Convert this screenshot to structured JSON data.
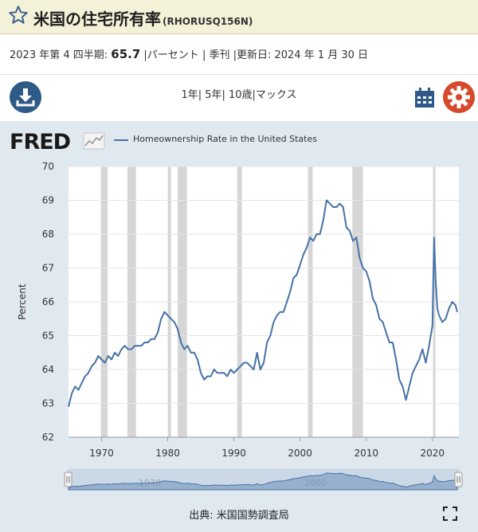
{
  "header": {
    "title": "米国の住宅所有率",
    "series_id": "(RHORUSQ156N)"
  },
  "meta": {
    "period": "2023 年第 4 四半期:",
    "value": "65.7",
    "unit_sep": " |パーセント | 季刊 |更新日: 2024 年 1 月 30 日"
  },
  "controls": {
    "ranges": "1年| 5年| 10歳|マックス"
  },
  "legend": {
    "logo": "FRED",
    "label": "Homeownership Rate in the United States"
  },
  "footer": {
    "source": "出典: 米国国勢調査局"
  },
  "navigator": {
    "labels": [
      "1970",
      "2000"
    ]
  },
  "colors": {
    "line": "#4572a7",
    "recession": "#d6d6d6"
  },
  "chart_data": {
    "type": "line",
    "title": "Homeownership Rate in the United States",
    "xlabel": "",
    "ylabel": "Percent",
    "xlim": [
      1965,
      2024
    ],
    "ylim": [
      62,
      70
    ],
    "y_ticks": [
      62,
      63,
      64,
      65,
      66,
      67,
      68,
      69,
      70
    ],
    "x_ticks": [
      1970,
      1980,
      1990,
      2000,
      2010,
      2020
    ],
    "grid": "horizontal",
    "recessions": [
      [
        1969.9,
        1970.9
      ],
      [
        1973.9,
        1975.2
      ],
      [
        1980.0,
        1980.5
      ],
      [
        1981.5,
        1982.9
      ],
      [
        1990.5,
        1991.2
      ],
      [
        2001.2,
        2001.9
      ],
      [
        2007.9,
        2009.5
      ],
      [
        2020.1,
        2020.4
      ]
    ],
    "series": [
      {
        "name": "Homeownership Rate in the United States",
        "x": [
          1965,
          1965.5,
          1966,
          1966.5,
          1967,
          1967.5,
          1968,
          1968.5,
          1969,
          1969.5,
          1970,
          1970.5,
          1971,
          1971.5,
          1972,
          1972.5,
          1973,
          1973.5,
          1974,
          1974.5,
          1975,
          1975.5,
          1976,
          1976.5,
          1977,
          1977.5,
          1978,
          1978.5,
          1979,
          1979.5,
          1980,
          1980.5,
          1981,
          1981.5,
          1982,
          1982.5,
          1983,
          1983.5,
          1984,
          1984.5,
          1985,
          1985.5,
          1986,
          1986.5,
          1987,
          1987.5,
          1988,
          1988.5,
          1989,
          1989.5,
          1990,
          1990.5,
          1991,
          1991.5,
          1992,
          1992.5,
          1993,
          1993.5,
          1994,
          1994.5,
          1995,
          1995.5,
          1996,
          1996.5,
          1997,
          1997.5,
          1998,
          1998.5,
          1999,
          1999.5,
          2000,
          2000.5,
          2001,
          2001.5,
          2002,
          2002.5,
          2003,
          2003.5,
          2004,
          2004.5,
          2005,
          2005.5,
          2006,
          2006.5,
          2007,
          2007.5,
          2008,
          2008.5,
          2009,
          2009.5,
          2010,
          2010.5,
          2011,
          2011.5,
          2012,
          2012.5,
          2013,
          2013.5,
          2014,
          2014.5,
          2015,
          2015.5,
          2016,
          2016.5,
          2017,
          2017.5,
          2018,
          2018.5,
          2019,
          2019.5,
          2020,
          2020.25,
          2020.5,
          2020.75,
          2021,
          2021.5,
          2022,
          2022.5,
          2023,
          2023.5,
          2023.75
        ],
        "values": [
          62.9,
          63.3,
          63.5,
          63.4,
          63.6,
          63.8,
          63.9,
          64.1,
          64.2,
          64.4,
          64.3,
          64.2,
          64.4,
          64.3,
          64.5,
          64.4,
          64.6,
          64.7,
          64.6,
          64.6,
          64.7,
          64.7,
          64.7,
          64.8,
          64.8,
          64.9,
          64.9,
          65.1,
          65.5,
          65.7,
          65.6,
          65.5,
          65.4,
          65.2,
          64.8,
          64.6,
          64.7,
          64.5,
          64.5,
          64.3,
          63.9,
          63.7,
          63.8,
          63.8,
          64.0,
          63.9,
          63.9,
          63.9,
          63.8,
          64.0,
          63.9,
          64.0,
          64.1,
          64.2,
          64.2,
          64.1,
          64.0,
          64.5,
          64.0,
          64.2,
          64.8,
          65.0,
          65.4,
          65.6,
          65.7,
          65.7,
          66.0,
          66.3,
          66.7,
          66.8,
          67.1,
          67.4,
          67.6,
          67.9,
          67.8,
          68.0,
          68.0,
          68.4,
          69.0,
          68.9,
          68.8,
          68.8,
          68.9,
          68.8,
          68.2,
          68.1,
          67.8,
          67.9,
          67.3,
          67.0,
          66.9,
          66.6,
          66.1,
          65.9,
          65.5,
          65.4,
          65.1,
          64.8,
          64.8,
          64.3,
          63.7,
          63.5,
          63.1,
          63.5,
          63.9,
          64.1,
          64.3,
          64.6,
          64.2,
          64.7,
          65.3,
          67.9,
          66.6,
          65.8,
          65.6,
          65.4,
          65.5,
          65.8,
          66.0,
          65.9,
          65.7
        ]
      }
    ]
  }
}
